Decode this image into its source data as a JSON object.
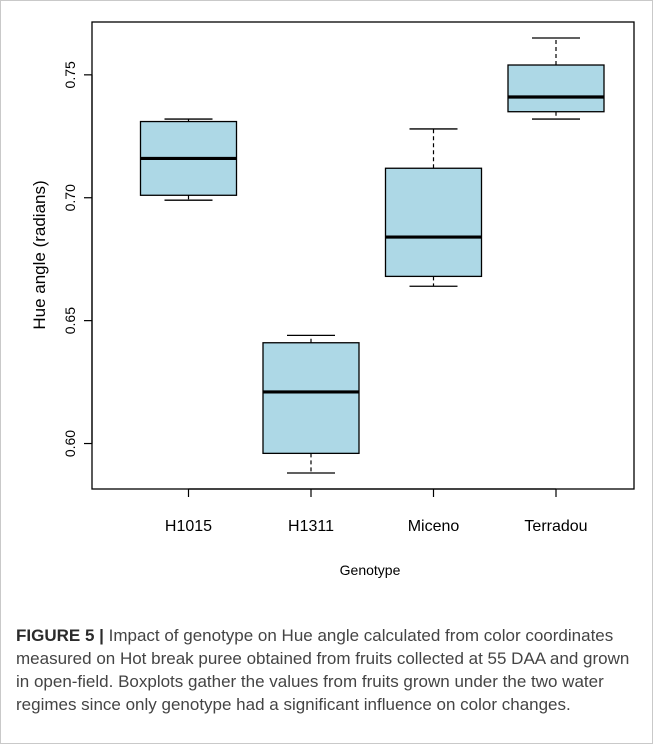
{
  "chart_data": {
    "type": "boxplot",
    "xlabel": "Genotype",
    "ylabel": "Hue angle (radians)",
    "categories": [
      "H1015",
      "H1311",
      "Miceno",
      "Terradou"
    ],
    "ylim": [
      0.5815,
      0.7715
    ],
    "yticks": [
      0.6,
      0.65,
      0.7,
      0.75
    ],
    "ytick_labels": [
      "0.60",
      "0.65",
      "0.70",
      "0.75"
    ],
    "box_fill": "#add8e6",
    "boxes": [
      {
        "name": "H1015",
        "min": 0.699,
        "q1": 0.701,
        "median": 0.716,
        "q3": 0.731,
        "max": 0.732
      },
      {
        "name": "H1311",
        "min": 0.588,
        "q1": 0.596,
        "median": 0.621,
        "q3": 0.641,
        "max": 0.644
      },
      {
        "name": "Miceno",
        "min": 0.664,
        "q1": 0.668,
        "median": 0.684,
        "q3": 0.712,
        "max": 0.728
      },
      {
        "name": "Terradou",
        "min": 0.732,
        "q1": 0.735,
        "median": 0.741,
        "q3": 0.754,
        "max": 0.765
      }
    ]
  },
  "caption": {
    "label": "FIGURE 5 |",
    "text": " Impact of genotype on Hue angle calculated from color coordinates measured on Hot break puree obtained from fruits collected at 55 DAA and grown in open-field. Boxplots gather the values from fruits grown under the two water regimes since only genotype had a significant influence on color changes."
  }
}
